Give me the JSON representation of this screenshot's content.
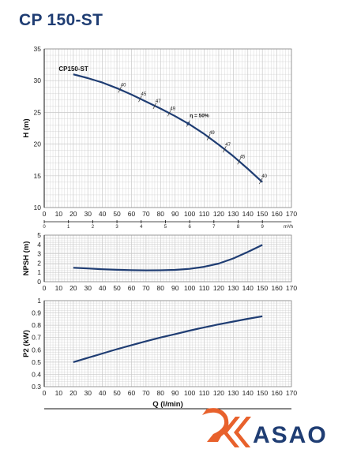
{
  "title": "CP 150-ST",
  "logo": {
    "text": "ASAO",
    "colors": {
      "mark": "#e8612c",
      "text": "#1f3d73"
    }
  },
  "colors": {
    "curve": "#1f3d73",
    "grid": "#c8c8c8",
    "axis": "#111111"
  },
  "chart_data": [
    {
      "type": "line",
      "curve_label": "CP150-ST",
      "ylabel": "H (m)",
      "ylim": [
        10,
        35
      ],
      "yticks": [
        10,
        15,
        20,
        25,
        30,
        35
      ],
      "xlim": [
        0,
        170
      ],
      "xticks": [
        0,
        10,
        20,
        30,
        40,
        50,
        60,
        70,
        80,
        90,
        100,
        110,
        120,
        130,
        140,
        150,
        160,
        170
      ],
      "secondary_x": {
        "unit": "m³/h",
        "ticks": [
          0,
          1,
          2,
          3,
          4,
          5,
          6,
          7,
          8,
          9
        ]
      },
      "series": [
        {
          "x": [
            20,
            30,
            40,
            50,
            60,
            70,
            80,
            90,
            100,
            110,
            120,
            130,
            140,
            150
          ],
          "y": [
            31.0,
            30.4,
            29.7,
            28.8,
            27.8,
            26.7,
            25.6,
            24.4,
            23.1,
            21.6,
            19.9,
            18.1,
            16.1,
            14.0
          ]
        }
      ],
      "efficiency_marks": [
        {
          "label": "40",
          "x": 52
        },
        {
          "label": "45",
          "x": 66
        },
        {
          "label": "47",
          "x": 76
        },
        {
          "label": "49",
          "x": 86
        },
        {
          "label": "η = 50%",
          "x": 99
        },
        {
          "label": "49",
          "x": 113
        },
        {
          "label": "47",
          "x": 124
        },
        {
          "label": "45",
          "x": 134
        },
        {
          "label": "40",
          "x": 149
        }
      ]
    },
    {
      "type": "line",
      "ylabel": "NPSH (m)",
      "ylim": [
        0,
        5
      ],
      "yticks": [
        0,
        1,
        2,
        3,
        4,
        5
      ],
      "xlim": [
        0,
        170
      ],
      "xticks": [
        0,
        10,
        20,
        30,
        40,
        50,
        60,
        70,
        80,
        90,
        100,
        110,
        120,
        130,
        140,
        150,
        160,
        170
      ],
      "series": [
        {
          "x": [
            20,
            30,
            40,
            50,
            60,
            70,
            80,
            90,
            100,
            110,
            120,
            130,
            140,
            150
          ],
          "y": [
            1.5,
            1.42,
            1.34,
            1.28,
            1.24,
            1.22,
            1.23,
            1.27,
            1.38,
            1.6,
            1.95,
            2.5,
            3.2,
            3.95
          ]
        }
      ]
    },
    {
      "type": "line",
      "ylabel": "P2 (kW)",
      "xlabel": "Q (l/min)",
      "ylim": [
        0.3,
        1
      ],
      "yticks": [
        0.3,
        0.4,
        0.5,
        0.6,
        0.7,
        0.8,
        0.9,
        1
      ],
      "xlim": [
        0,
        170
      ],
      "xticks": [
        0,
        10,
        20,
        30,
        40,
        50,
        60,
        70,
        80,
        90,
        100,
        110,
        120,
        130,
        140,
        150,
        160,
        170
      ],
      "series": [
        {
          "x": [
            20,
            30,
            40,
            50,
            60,
            70,
            80,
            90,
            100,
            110,
            120,
            130,
            140,
            150
          ],
          "y": [
            0.5,
            0.535,
            0.57,
            0.605,
            0.638,
            0.67,
            0.7,
            0.728,
            0.756,
            0.782,
            0.807,
            0.83,
            0.852,
            0.873
          ]
        }
      ]
    }
  ]
}
